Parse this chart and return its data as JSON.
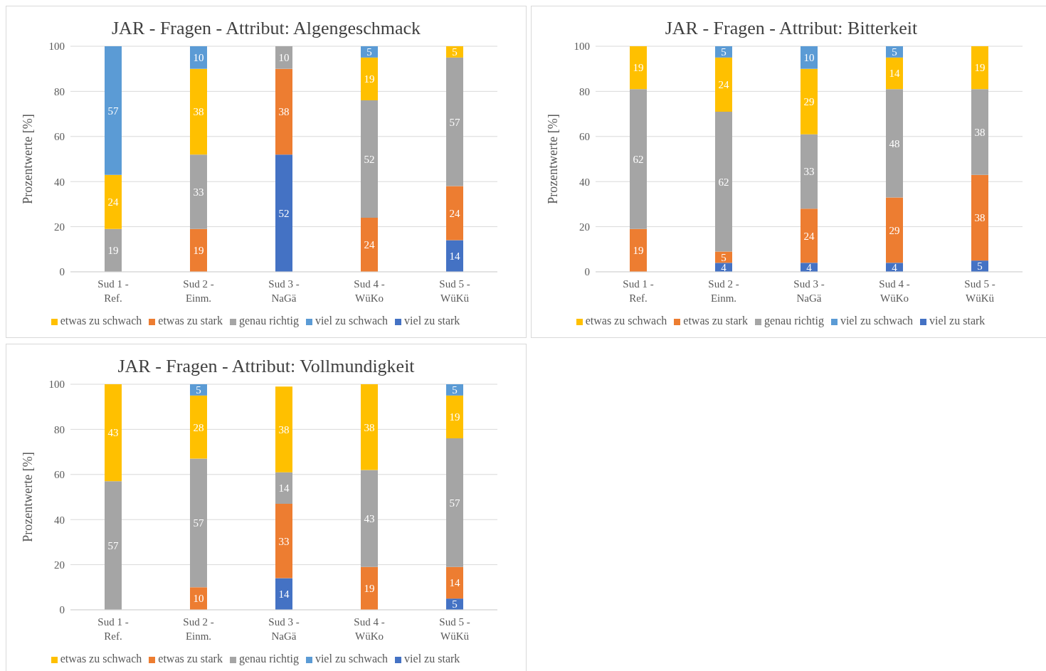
{
  "chart_data": [
    {
      "type": "bar",
      "title": "JAR - Fragen - Attribut: Algengeschmack",
      "ylabel": "Prozentwerte [%]",
      "categories": [
        "Sud 1 -\nRef.",
        "Sud 2 -\nEinm.",
        "Sud 3 -\nNaGä",
        "Sud 4 -\nWüKo",
        "Sud 5 -\nWüKü"
      ],
      "stacked": true,
      "ylim": [
        0,
        100
      ],
      "yticks": [
        0,
        20,
        40,
        60,
        80,
        100
      ],
      "grid": "y",
      "legend": "bottom",
      "data_labels": true,
      "series": [
        {
          "name": "viel zu stark",
          "color": "#4472c4",
          "values": [
            null,
            null,
            52,
            null,
            14
          ]
        },
        {
          "name": "etwas zu stark",
          "color": "#ed7d31",
          "values": [
            null,
            19,
            38,
            24,
            24
          ]
        },
        {
          "name": "genau richtig",
          "color": "#a5a5a5",
          "values": [
            19,
            33,
            10,
            52,
            57
          ]
        },
        {
          "name": "etwas zu schwach",
          "color": "#ffc000",
          "values": [
            24,
            38,
            null,
            19,
            5
          ]
        },
        {
          "name": "viel zu schwach",
          "color": "#5b9bd5",
          "values": [
            57,
            10,
            null,
            5,
            null
          ]
        }
      ]
    },
    {
      "type": "bar",
      "title": "JAR - Fragen - Attribut: Bitterkeit",
      "ylabel": "Prozentwerte [%]",
      "categories": [
        "Sud 1 -\nRef.",
        "Sud 2 -\nEinm.",
        "Sud 3 -\nNaGä",
        "Sud 4 -\nWüKo",
        "Sud 5 -\nWüKü"
      ],
      "stacked": true,
      "ylim": [
        0,
        100
      ],
      "yticks": [
        0,
        20,
        40,
        60,
        80,
        100
      ],
      "grid": "y",
      "legend": "bottom",
      "data_labels": true,
      "series": [
        {
          "name": "viel zu stark",
          "color": "#4472c4",
          "values": [
            null,
            4,
            4,
            4,
            5
          ]
        },
        {
          "name": "etwas zu stark",
          "color": "#ed7d31",
          "values": [
            19,
            5,
            24,
            29,
            38
          ]
        },
        {
          "name": "genau richtig",
          "color": "#a5a5a5",
          "values": [
            62,
            62,
            33,
            48,
            38
          ]
        },
        {
          "name": "etwas zu schwach",
          "color": "#ffc000",
          "values": [
            19,
            24,
            29,
            14,
            19
          ]
        },
        {
          "name": "viel zu schwach",
          "color": "#5b9bd5",
          "values": [
            null,
            5,
            10,
            5,
            null
          ]
        }
      ]
    },
    {
      "type": "bar",
      "title": "JAR - Fragen - Attribut: Vollmundigkeit",
      "ylabel": "Prozentwerte [%]",
      "categories": [
        "Sud 1 -\nRef.",
        "Sud 2 -\nEinm.",
        "Sud 3 -\nNaGä",
        "Sud 4 -\nWüKo",
        "Sud 5 -\nWüKü"
      ],
      "stacked": true,
      "ylim": [
        0,
        100
      ],
      "yticks": [
        0,
        20,
        40,
        60,
        80,
        100
      ],
      "grid": "y",
      "legend": "bottom",
      "data_labels": true,
      "series": [
        {
          "name": "viel zu stark",
          "color": "#4472c4",
          "values": [
            null,
            null,
            14,
            null,
            5
          ]
        },
        {
          "name": "etwas zu stark",
          "color": "#ed7d31",
          "values": [
            null,
            10,
            33,
            19,
            14
          ]
        },
        {
          "name": "genau richtig",
          "color": "#a5a5a5",
          "values": [
            57,
            57,
            14,
            43,
            57
          ]
        },
        {
          "name": "etwas zu schwach",
          "color": "#ffc000",
          "values": [
            43,
            28,
            38,
            38,
            19
          ]
        },
        {
          "name": "viel zu schwach",
          "color": "#5b9bd5",
          "values": [
            null,
            5,
            null,
            null,
            5
          ]
        }
      ]
    }
  ]
}
